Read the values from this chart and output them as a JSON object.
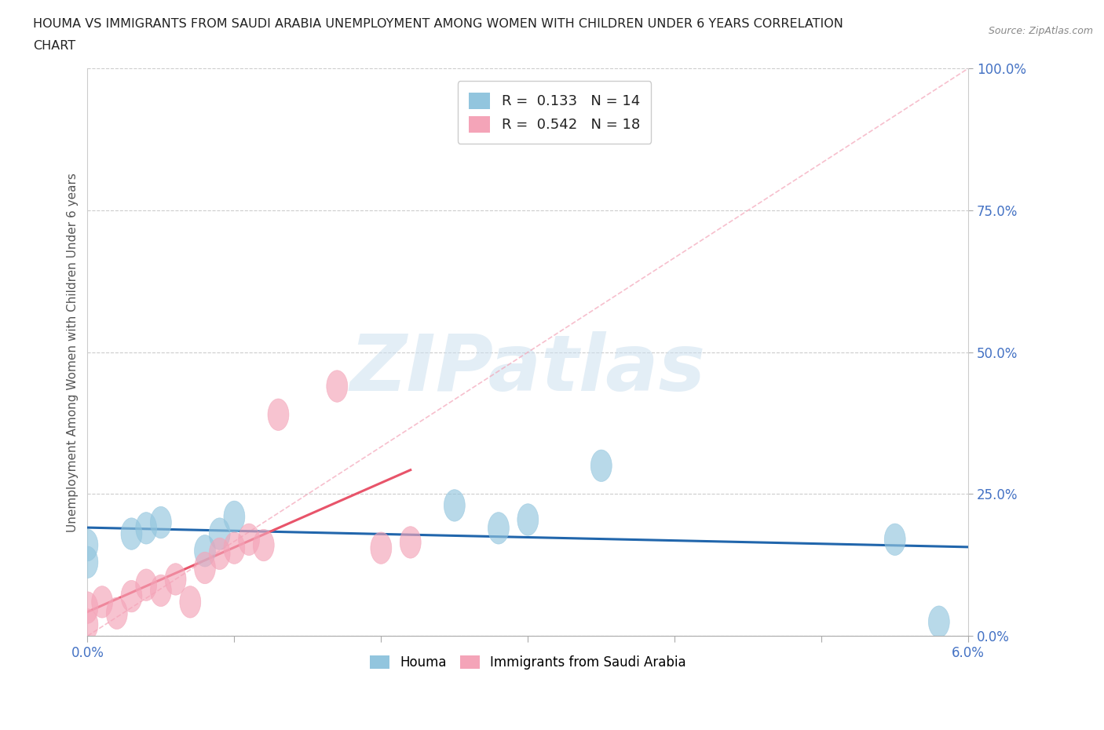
{
  "title_line1": "HOUMA VS IMMIGRANTS FROM SAUDI ARABIA UNEMPLOYMENT AMONG WOMEN WITH CHILDREN UNDER 6 YEARS CORRELATION",
  "title_line2": "CHART",
  "source": "Source: ZipAtlas.com",
  "ylabel": "Unemployment Among Women with Children Under 6 years",
  "xlim": [
    0.0,
    0.06
  ],
  "ylim": [
    0.0,
    1.0
  ],
  "xticks": [
    0.0,
    0.01,
    0.02,
    0.03,
    0.04,
    0.05,
    0.06
  ],
  "xtick_labels_show": [
    "0.0%",
    "",
    "",
    "",
    "",
    "",
    "6.0%"
  ],
  "yticks": [
    0.0,
    0.25,
    0.5,
    0.75,
    1.0
  ],
  "ytick_labels": [
    "0.0%",
    "25.0%",
    "50.0%",
    "75.0%",
    "100.0%"
  ],
  "houma_color": "#92c5de",
  "saudi_color": "#f4a4b8",
  "houma_R": 0.133,
  "houma_N": 14,
  "saudi_R": 0.542,
  "saudi_N": 18,
  "houma_x": [
    0.0,
    0.0,
    0.003,
    0.004,
    0.005,
    0.008,
    0.009,
    0.01,
    0.025,
    0.028,
    0.03,
    0.035,
    0.055,
    0.058
  ],
  "houma_y": [
    0.13,
    0.16,
    0.18,
    0.19,
    0.2,
    0.15,
    0.18,
    0.21,
    0.23,
    0.19,
    0.205,
    0.3,
    0.17,
    0.025
  ],
  "saudi_x": [
    0.0,
    0.0,
    0.001,
    0.002,
    0.003,
    0.004,
    0.005,
    0.006,
    0.007,
    0.008,
    0.009,
    0.01,
    0.011,
    0.012,
    0.013,
    0.017,
    0.02,
    0.022
  ],
  "saudi_y": [
    0.02,
    0.05,
    0.06,
    0.04,
    0.07,
    0.09,
    0.08,
    0.1,
    0.06,
    0.12,
    0.145,
    0.155,
    0.17,
    0.16,
    0.39,
    0.44,
    0.155,
    0.165
  ],
  "watermark_text": "ZIPatlas",
  "grid_color": "#cccccc",
  "background_color": "#ffffff",
  "houma_trend_color": "#2166ac",
  "saudi_trend_color": "#e8546a",
  "ref_line_color": "#f4a4b8",
  "legend_houma_color": "#92c5de",
  "legend_saudi_color": "#f4a4b8"
}
